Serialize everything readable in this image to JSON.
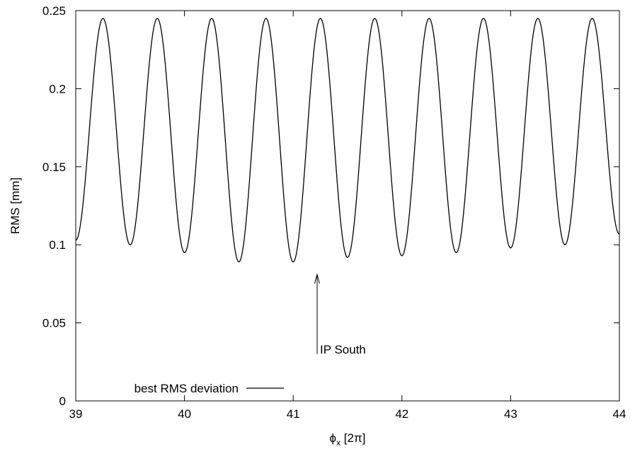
{
  "chart_data": {
    "type": "line",
    "xlabel_main": "ϕ",
    "xlabel_sub": "x",
    "xlabel_unit": " [2π]",
    "ylabel": "RMS [mm]",
    "xlim": [
      39,
      44
    ],
    "ylim": [
      0,
      0.25
    ],
    "x_ticks": [
      39,
      40,
      41,
      42,
      43,
      44
    ],
    "y_ticks": [
      0,
      0.05,
      0.1,
      0.15,
      0.2,
      0.25
    ],
    "x_tick_labels": [
      "39",
      "40",
      "41",
      "42",
      "43",
      "44"
    ],
    "y_tick_labels": [
      "0",
      "0.05",
      "0.1",
      "0.15",
      "0.2",
      "0.25"
    ],
    "grid": false,
    "legend_position": "bottom-left",
    "series": [
      {
        "name": "best RMS deviation",
        "color": "#000000",
        "period": 0.5,
        "peak_x": [
          39.25,
          39.75,
          40.25,
          40.75,
          41.25,
          41.75,
          42.25,
          42.75,
          43.25,
          43.75
        ],
        "peak_y": [
          0.245,
          0.245,
          0.245,
          0.245,
          0.245,
          0.245,
          0.245,
          0.245,
          0.245,
          0.245
        ],
        "min_x": [
          39.0,
          39.5,
          40.0,
          40.5,
          41.0,
          41.5,
          42.0,
          42.5,
          43.0,
          43.5,
          44.0
        ],
        "min_y": [
          0.103,
          0.1,
          0.095,
          0.089,
          0.089,
          0.092,
          0.093,
          0.095,
          0.098,
          0.1,
          0.107
        ]
      }
    ],
    "annotation": {
      "text": "IP South",
      "arrow_x": 41.22,
      "arrow_from_y": 0.03,
      "arrow_to_y": 0.081
    }
  }
}
